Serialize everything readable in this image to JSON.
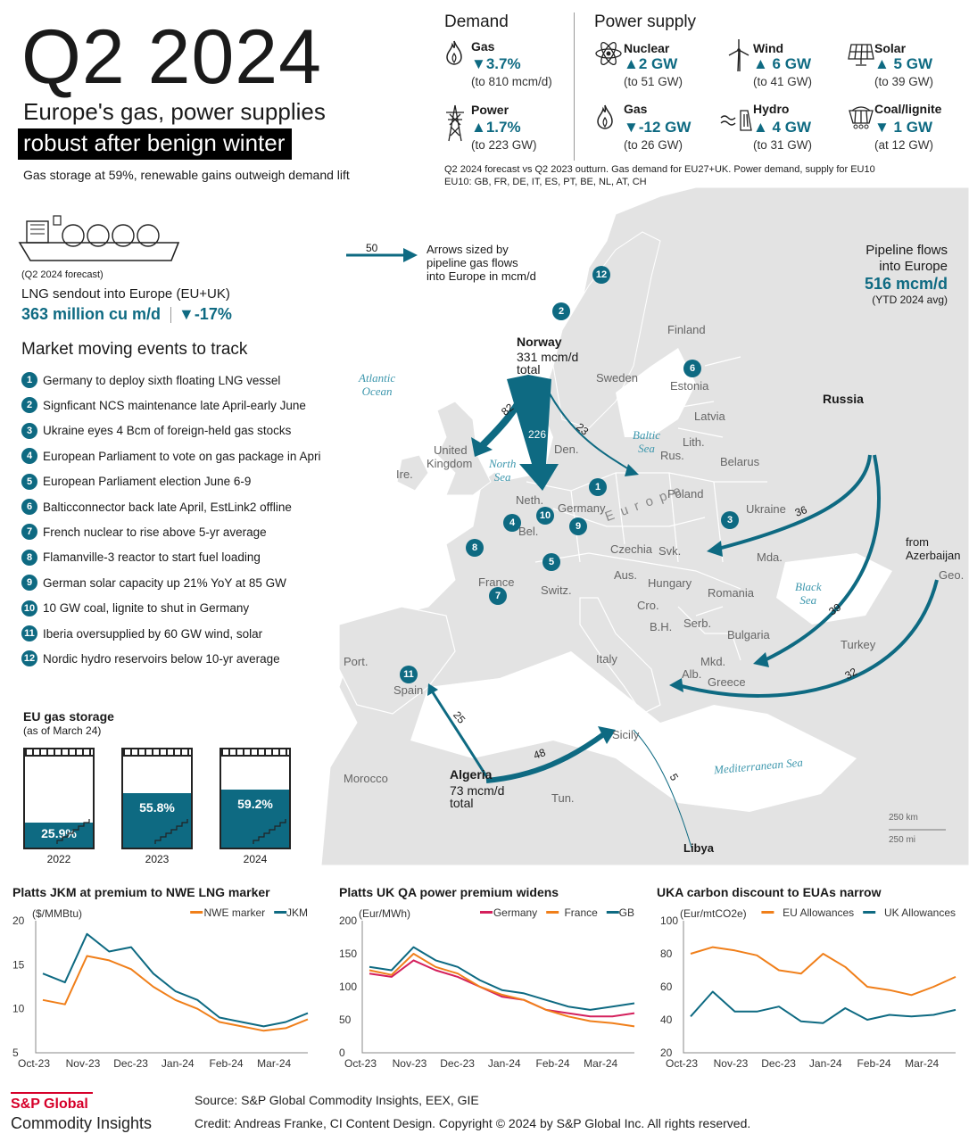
{
  "header": {
    "title": "Q2 2024",
    "subtitle_line1": "Europe's gas, power supplies",
    "subtitle_line2": "robust after benign winter",
    "tagline": "Gas storage at 59%, renewable gains outweigh demand lift"
  },
  "demand": {
    "heading": "Demand",
    "items": [
      {
        "name": "Gas",
        "value": "▼3.7%",
        "sub": "(to 810 mcm/d)",
        "icon": "flame-icon"
      },
      {
        "name": "Power",
        "value": "▲1.7%",
        "sub": "(to 223 GW)",
        "icon": "pylon-icon"
      }
    ]
  },
  "supply": {
    "heading": "Power supply",
    "items": [
      {
        "name": "Nuclear",
        "value": "▲2 GW",
        "sub": "(to 51 GW)",
        "icon": "atom-icon"
      },
      {
        "name": "Wind",
        "value": "▲ 6 GW",
        "sub": "(to 41 GW)",
        "icon": "wind-turbine-icon"
      },
      {
        "name": "Solar",
        "value": "▲ 5 GW",
        "sub": "(to 39 GW)",
        "icon": "solar-panel-icon"
      },
      {
        "name": "Gas",
        "value": "▼-12 GW",
        "sub": "(to 26 GW)",
        "icon": "flame-icon"
      },
      {
        "name": "Hydro",
        "value": "▲ 4 GW",
        "sub": "(to 31 GW)",
        "icon": "hydro-icon"
      },
      {
        "name": "Coal/lignite",
        "value": "▼ 1 GW",
        "sub": "(at 12 GW)",
        "icon": "coal-cart-icon"
      }
    ],
    "note1": "Q2 2024 forecast vs Q2 2023 outturn. Gas demand for EU27+UK. Power demand, supply for EU10",
    "note2": "EU10: GB, FR, DE, IT, ES, PT, BE, NL, AT, CH"
  },
  "lng": {
    "forecast_note": "(Q2 2024 forecast)",
    "label": "LNG sendout into Europe (EU+UK)",
    "value": "363  million cu m/d",
    "change": "▼-17%"
  },
  "events": {
    "title": "Market moving events to track",
    "items": [
      "Germany to deploy sixth floating LNG vessel",
      "Signficant NCS maintenance late April-early June",
      "Ukraine eyes 4 Bcm of foreign-held gas stocks",
      "European Parliament to vote on gas package in April",
      "European Parliament election June 6-9",
      "Balticconnector back late April, EstLink2 offline",
      "French nuclear to rise above 5-yr average",
      "Flamanville-3 reactor to start fuel loading",
      "German solar capacity up 21% YoY at 85 GW",
      "10 GW coal, lignite to shut in Germany",
      "Iberia oversupplied by 60 GW wind, solar",
      "Nordic hydro reservoirs below 10-yr average"
    ]
  },
  "map": {
    "legend_value": "50",
    "legend_text": [
      "Arrows sized by",
      "pipeline gas flows",
      "into Europe in mcm/d"
    ],
    "pipeline_title": [
      "Pipeline flows",
      "into Europe"
    ],
    "pipeline_value": "516 mcm/d",
    "pipeline_note": "(YTD 2024 avg)",
    "norway": {
      "name": "Norway",
      "flow": "331 mcm/d",
      "total": "total"
    },
    "algeria": {
      "name": "Algeria",
      "flow": "73 mcm/d",
      "total": "total"
    },
    "russia": "Russia",
    "libya": "Libya",
    "azerbaijan": [
      "from",
      "Azerbaijan"
    ],
    "flows": [
      "82",
      "226",
      "23",
      "36",
      "39",
      "32",
      "25",
      "48",
      "5"
    ],
    "countries": [
      "Finland",
      "Sweden",
      "Estonia",
      "Latvia",
      "Lith.",
      "Rus.",
      "Belarus",
      "Poland",
      "Ukraine",
      "United",
      "Kingdom",
      "Ire.",
      "Den.",
      "Neth.",
      "Bel.",
      "Germany",
      "Czechia",
      "Svk.",
      "Aus.",
      "Hungary",
      "Mda.",
      "Romania",
      "France",
      "Switz.",
      "Cro.",
      "B.H.",
      "Serb.",
      "Bulgaria",
      "Italy",
      "Mkd.",
      "Alb.",
      "Greece",
      "Turkey",
      "Geo.",
      "Port.",
      "Spain",
      "Morocco",
      "Tun.",
      "Sicily"
    ],
    "seas": {
      "atlantic": [
        "Atlantic",
        "Ocean"
      ],
      "north": [
        "North",
        "Sea"
      ],
      "baltic": [
        "Baltic",
        "Sea"
      ],
      "black": [
        "Black",
        "Sea"
      ],
      "med": "Mediterranean Sea"
    },
    "europe_label": "E u r o p e",
    "scale": [
      "250 km",
      "250 mi"
    ]
  },
  "storage": {
    "title": "EU gas storage",
    "subtitle": "(as of March 24)",
    "tanks": [
      {
        "year": "2022",
        "pct_label": "25.9%",
        "fill": 0.259
      },
      {
        "year": "2023",
        "pct_label": "55.8%",
        "fill": 0.558
      },
      {
        "year": "2024",
        "pct_label": "59.2%",
        "fill": 0.592
      }
    ]
  },
  "chart_data": [
    {
      "type": "line",
      "title": "Platts JKM at premium to NWE LNG marker",
      "ylabel": "($/MMBtu)",
      "ylim": [
        5,
        20
      ],
      "yticks": [
        5,
        10,
        15,
        20
      ],
      "xticks": [
        "Oct-23",
        "Nov-23",
        "Dec-23",
        "Jan-24",
        "Feb-24",
        "Mar-24"
      ],
      "x": [
        "Oct-23",
        "Oct-23",
        "Nov-23",
        "Nov-23",
        "Dec-23",
        "Dec-23",
        "Jan-24",
        "Jan-24",
        "Feb-24",
        "Feb-24",
        "Mar-24",
        "Mar-24",
        "Apr-24"
      ],
      "series": [
        {
          "name": "NWE marker",
          "color": "#f07f1a",
          "values": [
            11,
            10.5,
            16,
            15.5,
            14.5,
            12.5,
            11,
            10,
            8.5,
            8,
            7.5,
            7.8,
            8.8
          ]
        },
        {
          "name": "JKM",
          "color": "#0e6a82",
          "values": [
            14,
            13,
            18.5,
            16.5,
            17,
            14,
            12,
            11,
            9,
            8.5,
            8,
            8.5,
            9.5
          ]
        }
      ],
      "legend": "top-right"
    },
    {
      "type": "line",
      "title": "Platts UK QA power premium widens",
      "ylabel": "(Eur/MWh)",
      "ylim": [
        0,
        200
      ],
      "yticks": [
        0,
        50,
        100,
        150,
        200
      ],
      "xticks": [
        "Oct-23",
        "Nov-23",
        "Dec-23",
        "Jan-24",
        "Feb-24",
        "Mar-24"
      ],
      "x": [
        "Oct-23",
        "Oct-23",
        "Nov-23",
        "Nov-23",
        "Dec-23",
        "Dec-23",
        "Jan-24",
        "Jan-24",
        "Feb-24",
        "Feb-24",
        "Mar-24",
        "Mar-24",
        "Apr-24"
      ],
      "series": [
        {
          "name": "Germany",
          "color": "#d4205c",
          "values": [
            120,
            115,
            140,
            125,
            115,
            100,
            85,
            80,
            65,
            60,
            55,
            55,
            60
          ]
        },
        {
          "name": "France",
          "color": "#f07f1a",
          "values": [
            125,
            118,
            150,
            130,
            120,
            100,
            88,
            80,
            65,
            55,
            48,
            45,
            40
          ]
        },
        {
          "name": "GB",
          "color": "#0e6a82",
          "values": [
            130,
            125,
            160,
            140,
            130,
            110,
            95,
            90,
            80,
            70,
            65,
            70,
            75
          ]
        }
      ],
      "legend": "top-right"
    },
    {
      "type": "line",
      "title": "UKA carbon discount to EUAs narrow",
      "ylabel": "(Eur/mtCO2e)",
      "ylim": [
        20,
        100
      ],
      "yticks": [
        20,
        40,
        60,
        80,
        100
      ],
      "xticks": [
        "Oct-23",
        "Nov-23",
        "Dec-23",
        "Jan-24",
        "Feb-24",
        "Mar-24"
      ],
      "x": [
        "Oct-23",
        "Oct-23",
        "Nov-23",
        "Nov-23",
        "Dec-23",
        "Dec-23",
        "Jan-24",
        "Jan-24",
        "Feb-24",
        "Feb-24",
        "Mar-24",
        "Mar-24",
        "Apr-24"
      ],
      "series": [
        {
          "name": "EU Allowances",
          "color": "#f07f1a",
          "values": [
            80,
            84,
            82,
            79,
            70,
            68,
            80,
            72,
            60,
            58,
            55,
            60,
            66
          ]
        },
        {
          "name": "UK Allowances",
          "color": "#0e6a82",
          "values": [
            42,
            57,
            45,
            45,
            48,
            39,
            38,
            47,
            40,
            43,
            42,
            43,
            46
          ]
        }
      ],
      "legend": "top-right"
    }
  ],
  "footer": {
    "brand1": "S&P Global",
    "brand2": "Commodity Insights",
    "source": "Source: S&P Global Commodity Insights, EEX, GIE",
    "credit": "Credit: Andreas Franke, CI Content Design.  Copyright © 2024 by S&P Global Inc. All rights reserved."
  }
}
